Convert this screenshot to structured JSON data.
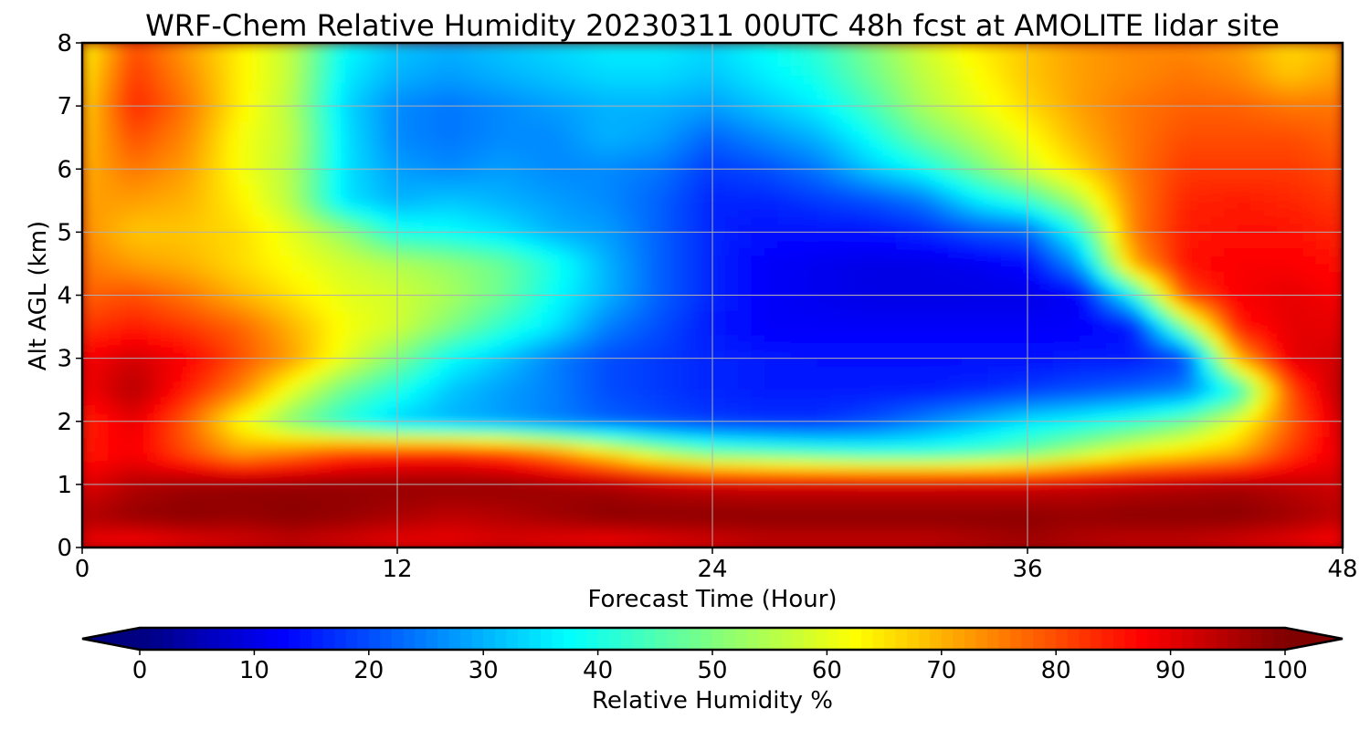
{
  "chart_data": {
    "type": "heatmap",
    "title": "WRF-Chem Relative Humidity 20230311 00UTC 48h fcst at AMOLITE lidar site",
    "xlabel": "Forecast Time (Hour)",
    "ylabel": "Alt AGL (km)",
    "xlim": [
      0,
      48
    ],
    "ylim": [
      0,
      8
    ],
    "x_ticks": [
      "0",
      "12",
      "24",
      "36",
      "48"
    ],
    "y_ticks": [
      "0",
      "1",
      "2",
      "3",
      "4",
      "5",
      "6",
      "7",
      "8"
    ],
    "grid": true,
    "colormap": "jet",
    "colorbar": {
      "label": "Relative Humidity %",
      "range": [
        0,
        100
      ],
      "ticks": [
        "0",
        "10",
        "20",
        "30",
        "40",
        "50",
        "60",
        "70",
        "80",
        "90",
        "100"
      ],
      "extend": "both",
      "orientation": "horizontal",
      "placement": "bottom"
    },
    "x": [
      0,
      2,
      4,
      6,
      8,
      10,
      12,
      14,
      16,
      18,
      20,
      22,
      24,
      26,
      28,
      30,
      32,
      34,
      36,
      38,
      40,
      42,
      44,
      46,
      48
    ],
    "y": [
      0,
      0.5,
      1,
      1.5,
      2,
      2.5,
      3,
      3.5,
      4,
      4.5,
      5,
      5.5,
      6,
      6.5,
      7,
      7.5,
      8
    ],
    "z": [
      [
        88,
        85,
        88,
        90,
        92,
        90,
        88,
        88,
        90,
        88,
        86,
        88,
        90,
        92,
        92,
        92,
        92,
        94,
        96,
        94,
        92,
        92,
        90,
        88,
        85
      ],
      [
        95,
        98,
        99,
        98,
        99,
        98,
        96,
        94,
        95,
        97,
        99,
        99,
        99,
        99,
        99,
        99,
        99,
        99,
        99,
        98,
        99,
        99,
        99,
        97,
        94
      ],
      [
        90,
        95,
        97,
        98,
        98,
        98,
        98,
        98,
        98,
        97,
        96,
        94,
        93,
        92,
        92,
        92,
        92,
        92,
        92,
        93,
        94,
        95,
        96,
        94,
        92
      ],
      [
        85,
        88,
        80,
        72,
        76,
        82,
        84,
        85,
        82,
        75,
        65,
        55,
        48,
        46,
        44,
        42,
        42,
        44,
        48,
        55,
        62,
        66,
        70,
        82,
        90
      ],
      [
        84,
        90,
        78,
        62,
        50,
        40,
        33,
        30,
        28,
        25,
        22,
        20,
        18,
        17,
        17,
        20,
        25,
        30,
        35,
        38,
        42,
        48,
        60,
        78,
        92
      ],
      [
        88,
        95,
        85,
        75,
        60,
        48,
        40,
        32,
        28,
        25,
        20,
        18,
        16,
        15,
        15,
        15,
        15,
        16,
        18,
        20,
        22,
        25,
        40,
        80,
        95
      ],
      [
        88,
        92,
        88,
        80,
        72,
        60,
        50,
        38,
        32,
        25,
        20,
        18,
        16,
        15,
        14,
        14,
        14,
        14,
        14,
        15,
        15,
        18,
        70,
        90,
        92
      ],
      [
        82,
        85,
        82,
        78,
        70,
        62,
        58,
        50,
        42,
        35,
        25,
        20,
        15,
        12,
        12,
        12,
        12,
        12,
        12,
        12,
        14,
        50,
        85,
        90,
        90
      ],
      [
        78,
        80,
        76,
        70,
        65,
        60,
        58,
        54,
        48,
        38,
        30,
        22,
        16,
        12,
        11,
        10,
        10,
        10,
        10,
        12,
        38,
        80,
        88,
        90,
        88
      ],
      [
        76,
        72,
        70,
        66,
        62,
        58,
        55,
        52,
        48,
        40,
        30,
        22,
        16,
        12,
        11,
        10,
        10,
        11,
        13,
        28,
        70,
        86,
        88,
        88,
        86
      ],
      [
        74,
        68,
        68,
        66,
        60,
        52,
        40,
        38,
        35,
        30,
        28,
        22,
        16,
        14,
        14,
        14,
        16,
        20,
        22,
        40,
        75,
        85,
        86,
        86,
        84
      ],
      [
        72,
        72,
        70,
        64,
        55,
        35,
        30,
        32,
        30,
        28,
        26,
        22,
        16,
        16,
        18,
        20,
        24,
        35,
        42,
        55,
        75,
        84,
        85,
        84,
        82
      ],
      [
        70,
        76,
        72,
        62,
        55,
        35,
        28,
        26,
        28,
        26,
        26,
        24,
        18,
        20,
        24,
        32,
        38,
        48,
        58,
        66,
        76,
        82,
        82,
        82,
        80
      ],
      [
        68,
        80,
        74,
        62,
        56,
        35,
        26,
        24,
        26,
        26,
        30,
        28,
        22,
        26,
        30,
        38,
        48,
        55,
        62,
        70,
        76,
        80,
        80,
        80,
        78
      ],
      [
        66,
        84,
        76,
        64,
        55,
        34,
        26,
        24,
        26,
        28,
        30,
        30,
        28,
        32,
        36,
        44,
        54,
        60,
        66,
        72,
        76,
        78,
        78,
        76,
        76
      ],
      [
        64,
        82,
        74,
        64,
        56,
        36,
        30,
        28,
        30,
        32,
        34,
        34,
        32,
        36,
        40,
        48,
        56,
        62,
        68,
        72,
        74,
        76,
        74,
        68,
        72
      ],
      [
        62,
        80,
        72,
        64,
        56,
        38,
        32,
        30,
        32,
        34,
        36,
        36,
        34,
        38,
        42,
        50,
        58,
        64,
        68,
        72,
        74,
        74,
        72,
        66,
        70
      ]
    ]
  }
}
